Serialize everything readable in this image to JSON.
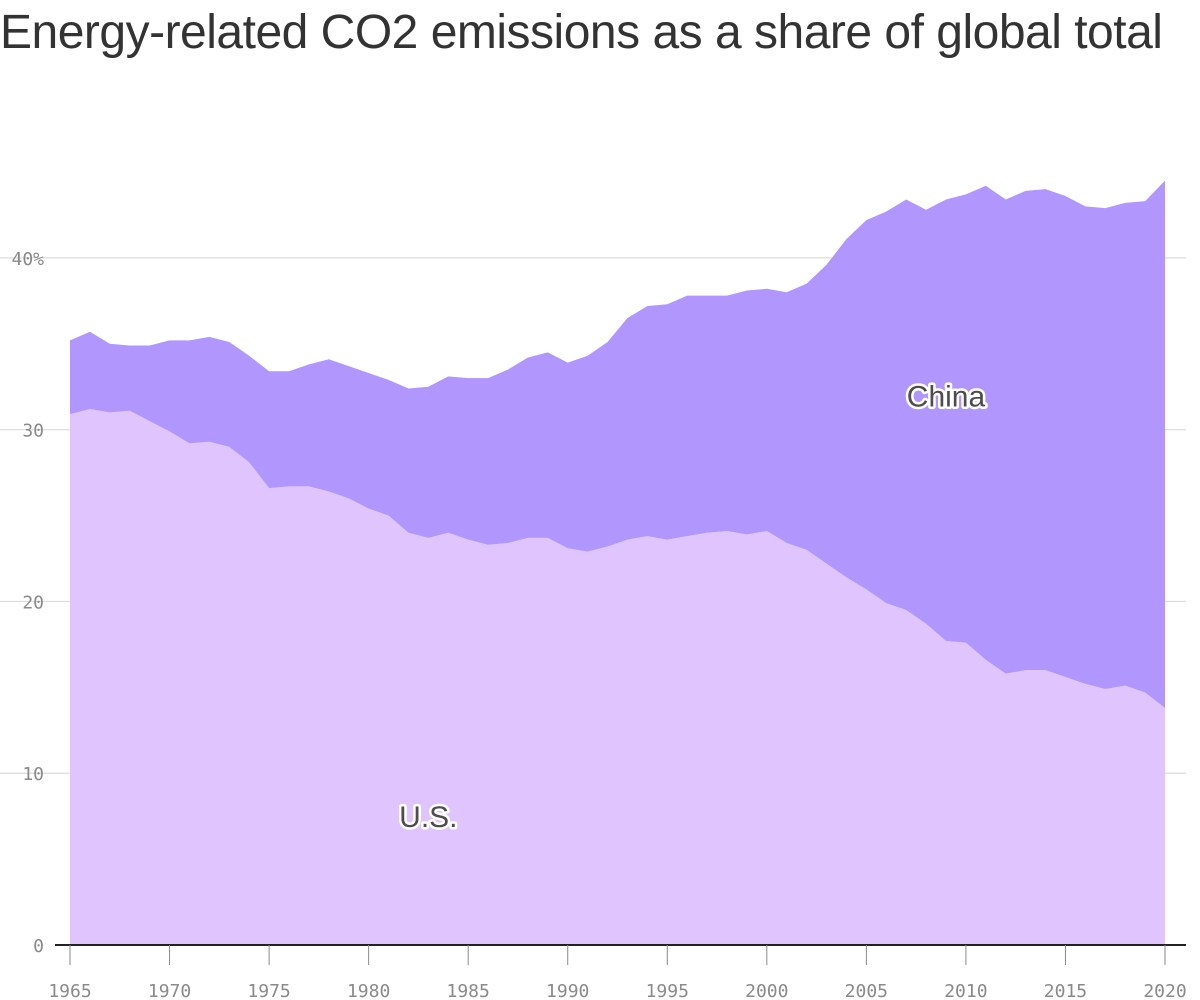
{
  "chart_data": {
    "type": "area",
    "stacked": true,
    "title": "Energy-related CO2 emissions as a share of global total",
    "xlabel": "",
    "ylabel": "",
    "x": [
      1965,
      1966,
      1967,
      1968,
      1969,
      1970,
      1971,
      1972,
      1973,
      1974,
      1975,
      1976,
      1977,
      1978,
      1979,
      1980,
      1981,
      1982,
      1983,
      1984,
      1985,
      1986,
      1987,
      1988,
      1989,
      1990,
      1991,
      1992,
      1993,
      1994,
      1995,
      1996,
      1997,
      1998,
      1999,
      2000,
      2001,
      2002,
      2003,
      2004,
      2005,
      2006,
      2007,
      2008,
      2009,
      2010,
      2011,
      2012,
      2013,
      2014,
      2015,
      2016,
      2017,
      2018,
      2019,
      2020
    ],
    "xticks": [
      "1965",
      "1970",
      "1975",
      "1980",
      "1985",
      "1990",
      "1995",
      "2000",
      "2005",
      "2010",
      "2015",
      "2020"
    ],
    "yticks": [
      "0",
      "10",
      "20",
      "30",
      "40%"
    ],
    "ylim": [
      0,
      45
    ],
    "grid": true,
    "series": [
      {
        "name": "U.S.",
        "color": "#e0c4fd",
        "values": [
          30.9,
          31.2,
          31.0,
          31.1,
          30.5,
          29.9,
          29.2,
          29.3,
          29.0,
          28.1,
          26.6,
          26.7,
          26.7,
          26.4,
          26.0,
          25.4,
          25.0,
          24.0,
          23.7,
          24.0,
          23.6,
          23.3,
          23.4,
          23.7,
          23.7,
          23.1,
          22.9,
          23.2,
          23.6,
          23.8,
          23.6,
          23.8,
          24.0,
          24.1,
          23.9,
          24.1,
          23.4,
          23.0,
          22.2,
          21.4,
          20.7,
          19.9,
          19.5,
          18.7,
          17.7,
          17.6,
          16.6,
          15.8,
          16.0,
          16.0,
          15.6,
          15.2,
          14.9,
          15.1,
          14.7,
          13.8
        ]
      },
      {
        "name": "China",
        "color": "#b196fe",
        "values": [
          4.3,
          4.5,
          4.0,
          3.8,
          4.4,
          5.3,
          6.0,
          6.1,
          6.1,
          6.2,
          6.8,
          6.7,
          7.1,
          7.7,
          7.7,
          7.9,
          7.9,
          8.4,
          8.8,
          9.1,
          9.4,
          9.7,
          10.1,
          10.5,
          10.8,
          10.8,
          11.4,
          11.9,
          12.9,
          13.4,
          13.7,
          14.0,
          13.8,
          13.7,
          14.2,
          14.1,
          14.6,
          15.5,
          17.4,
          19.7,
          21.5,
          22.8,
          23.9,
          24.1,
          25.7,
          26.1,
          27.6,
          27.6,
          27.9,
          28.0,
          28.0,
          27.8,
          28.0,
          28.1,
          28.6,
          30.7
        ]
      }
    ],
    "annotations": [
      {
        "text": "China",
        "x": 2009,
        "y": 32
      },
      {
        "text": "U.S.",
        "x": 1983,
        "y": 7.5
      }
    ]
  }
}
